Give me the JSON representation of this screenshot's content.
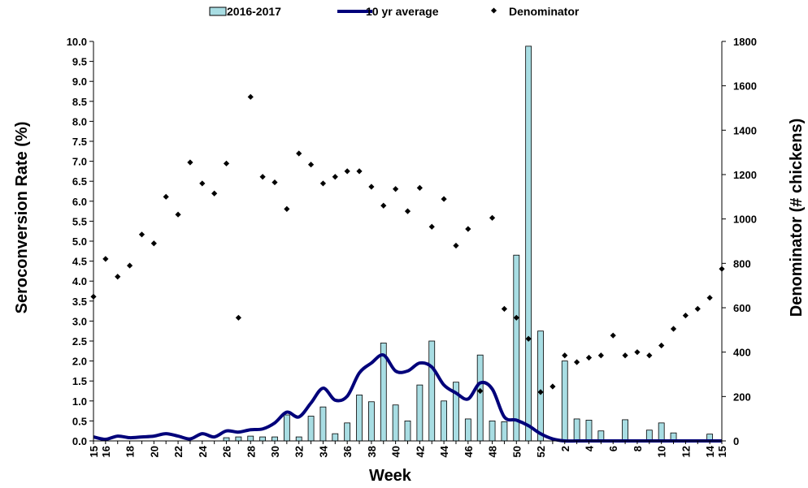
{
  "chart_data": {
    "type": "bar",
    "xlabel": "Week",
    "ylabel": "Seroconversion Rate (%)",
    "y2label": "Denominator (# chickens)",
    "ylim": [
      0,
      10
    ],
    "y2lim": [
      0,
      1800
    ],
    "yticks": [
      "0.0",
      "0.5",
      "1.0",
      "1.5",
      "2.0",
      "2.5",
      "3.0",
      "3.5",
      "4.0",
      "4.5",
      "5.0",
      "5.5",
      "6.0",
      "6.5",
      "7.0",
      "7.5",
      "8.0",
      "8.5",
      "9.0",
      "9.5",
      "10.0"
    ],
    "y2ticks": [
      "0",
      "200",
      "400",
      "600",
      "800",
      "1000",
      "1200",
      "1400",
      "1600",
      "1800"
    ],
    "x_tick_labels": [
      "15",
      "16",
      "18",
      "20",
      "22",
      "24",
      "26",
      "28",
      "30",
      "32",
      "34",
      "36",
      "38",
      "40",
      "42",
      "44",
      "46",
      "48",
      "50",
      "52",
      "2",
      "4",
      "6",
      "8",
      "10",
      "12",
      "14",
      "15"
    ],
    "legend_position": "top",
    "grid": false,
    "weeks": [
      "15",
      "16",
      "17",
      "18",
      "19",
      "20",
      "21",
      "22",
      "23",
      "24",
      "25",
      "26",
      "27",
      "28",
      "29",
      "30",
      "31",
      "32",
      "33",
      "34",
      "35",
      "36",
      "37",
      "38",
      "39",
      "40",
      "41",
      "42",
      "43",
      "44",
      "45",
      "46",
      "47",
      "48",
      "49",
      "50",
      "51",
      "52",
      "1",
      "2",
      "3",
      "4",
      "5",
      "6",
      "7",
      "8",
      "9",
      "10",
      "11",
      "12",
      "13",
      "14",
      "15"
    ],
    "series": [
      {
        "name": "2016-2017",
        "kind": "bar",
        "axis": "left",
        "color": "#a8dde3",
        "values": [
          0,
          0,
          0,
          0,
          0,
          0,
          0,
          0,
          0,
          0,
          0,
          0.08,
          0.1,
          0.12,
          0.1,
          0.1,
          0.65,
          0.1,
          0.62,
          0.85,
          0.18,
          0.45,
          1.15,
          0.98,
          2.45,
          0.9,
          0.5,
          1.4,
          2.5,
          1.0,
          1.47,
          0.55,
          2.15,
          0.5,
          0.48,
          4.65,
          9.88,
          2.75,
          0,
          2.0,
          0.55,
          0.52,
          0.25,
          0,
          0.53,
          0,
          0.27,
          0.45,
          0.2,
          0,
          0,
          0.17,
          0
        ]
      },
      {
        "name": "10 yr average",
        "kind": "line",
        "axis": "left",
        "color": "#00007a",
        "values": [
          0.1,
          0.04,
          0.12,
          0.08,
          0.1,
          0.12,
          0.18,
          0.12,
          0.05,
          0.18,
          0.1,
          0.25,
          0.22,
          0.28,
          0.3,
          0.45,
          0.72,
          0.6,
          0.95,
          1.32,
          1.02,
          1.12,
          1.7,
          1.95,
          2.15,
          1.75,
          1.75,
          1.95,
          1.85,
          1.4,
          1.2,
          1.05,
          1.45,
          1.3,
          0.6,
          0.52,
          0.38,
          0.18,
          0.05,
          0,
          0,
          0,
          0,
          0,
          0,
          0,
          0,
          0,
          0,
          0,
          0,
          0,
          0
        ]
      },
      {
        "name": "Denominator",
        "kind": "scatter",
        "axis": "right",
        "color": "#000000",
        "values": [
          650,
          820,
          740,
          790,
          930,
          890,
          1100,
          1020,
          1255,
          1160,
          1115,
          1250,
          555,
          1550,
          1190,
          1165,
          1045,
          1295,
          1245,
          1160,
          1190,
          1215,
          1215,
          1145,
          1060,
          1135,
          1035,
          1140,
          965,
          1090,
          880,
          955,
          225,
          1005,
          595,
          555,
          460,
          220,
          245,
          385,
          355,
          375,
          385,
          475,
          385,
          400,
          385,
          430,
          505,
          565,
          595,
          645,
          775
        ]
      }
    ]
  }
}
